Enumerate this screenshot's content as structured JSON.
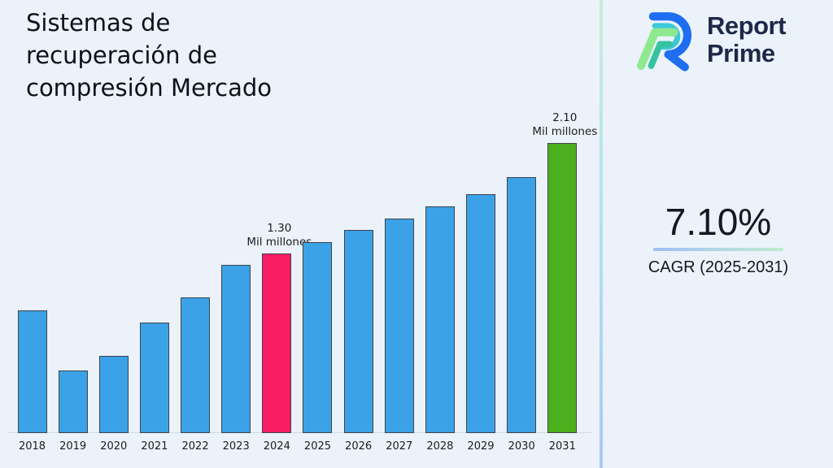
{
  "title": "Sistemas de\nrecuperación de\ncompresión Mercado",
  "logo": {
    "line1": "Report",
    "line2": "Prime",
    "icon": "report-prime-mark",
    "text_color": "#1E2949",
    "icon_colors": {
      "blue": "#1E6EF2",
      "cyan": "#3CC8DA",
      "green": "#8EE98E",
      "teal": "#35C3A0"
    }
  },
  "cagr": {
    "value": "7.10%",
    "label": "CAGR (2025-2031)"
  },
  "chart_data": {
    "type": "bar",
    "title": "Sistemas de recuperación de compresión Mercado",
    "categories": [
      "2018",
      "2019",
      "2020",
      "2021",
      "2022",
      "2023",
      "2024",
      "2025",
      "2026",
      "2027",
      "2028",
      "2029",
      "2030",
      "2031"
    ],
    "values": [
      0.89,
      0.45,
      0.56,
      0.8,
      0.98,
      1.22,
      1.3,
      1.38,
      1.47,
      1.55,
      1.64,
      1.73,
      1.85,
      2.1
    ],
    "unit": "Mil millones",
    "xlabel": "",
    "ylabel": "",
    "ylim": [
      0,
      2.4
    ],
    "grid": false,
    "legend": false,
    "bar_color_default": "#3BA2E7",
    "bar_color_highlights": {
      "2024": "#F81C64",
      "2031": "#4CAF1E"
    },
    "annotations": [
      {
        "category": "2024",
        "text": "1.30\nMil millones"
      },
      {
        "category": "2031",
        "text": "2.10\nMil millones"
      }
    ]
  }
}
